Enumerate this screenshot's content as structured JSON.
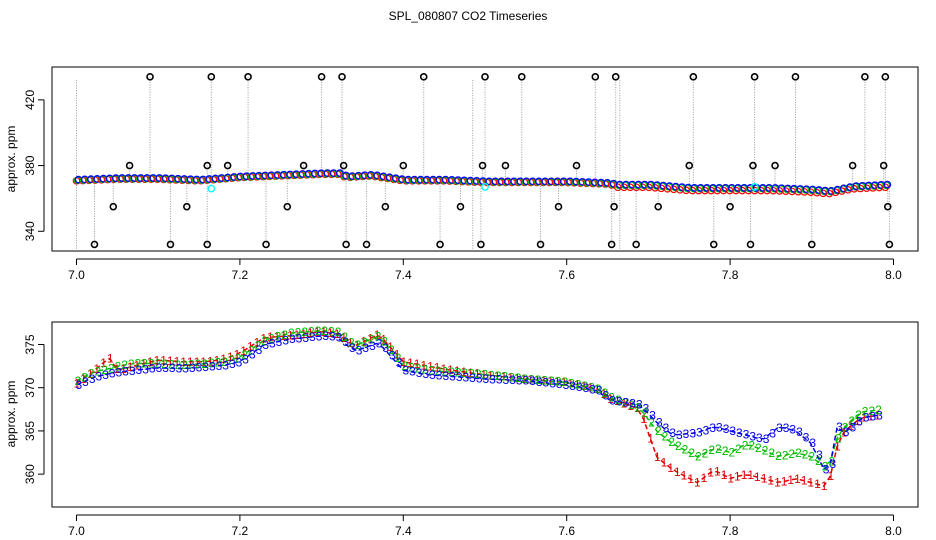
{
  "title": "SPL_080807  CO2 Timeseries",
  "chart_data": [
    {
      "type": "scatter",
      "panel": "top",
      "title": "",
      "xlabel": "",
      "ylabel": "approx. ppm",
      "xlim": [
        6.97,
        8.03
      ],
      "ylim": [
        328,
        440
      ],
      "xticks": [
        "7.0",
        "7.2",
        "7.4",
        "7.6",
        "7.8",
        "8.0"
      ],
      "xtick_values": [
        7.0,
        7.2,
        7.4,
        7.6,
        7.8,
        8.0
      ],
      "yticks": [
        "340",
        "380",
        "420"
      ],
      "ytick_values": [
        340,
        380,
        420
      ],
      "colors": {
        "red": "#ff0000",
        "green": "#00cc00",
        "blue": "#0000ff",
        "cyan": "#00ffff",
        "outlier": "#000000",
        "drop": "#9a9a9a"
      },
      "trend": {
        "x": [
          7.0,
          7.05,
          7.1,
          7.15,
          7.2,
          7.25,
          7.3,
          7.32,
          7.33,
          7.36,
          7.4,
          7.45,
          7.5,
          7.55,
          7.6,
          7.65,
          7.66,
          7.7,
          7.75,
          7.8,
          7.85,
          7.9,
          7.92,
          7.95,
          7.99
        ],
        "y": [
          371,
          372,
          372,
          371,
          373,
          374,
          375,
          375,
          373,
          374,
          371,
          371,
          370,
          370,
          370,
          369,
          368,
          368,
          366,
          366,
          366,
          365,
          364,
          367,
          368
        ]
      },
      "cyan_points": [
        [
          7.165,
          366
        ],
        [
          7.5,
          367
        ],
        [
          7.83,
          367
        ]
      ],
      "outliers_high": [
        7.09,
        7.165,
        7.21,
        7.3,
        7.325,
        7.425,
        7.5,
        7.545,
        7.635,
        7.66,
        7.755,
        7.83,
        7.88,
        7.965,
        7.99
      ],
      "outliers_low": [
        7.022,
        7.115,
        7.16,
        7.232,
        7.33,
        7.355,
        7.445,
        7.495,
        7.568,
        7.655,
        7.685,
        7.78,
        7.825,
        7.9,
        7.995
      ],
      "outliers_mid": [
        [
          7.065,
          380
        ],
        [
          7.16,
          380
        ],
        [
          7.185,
          380
        ],
        [
          7.278,
          380
        ],
        [
          7.327,
          380
        ],
        [
          7.4,
          380
        ],
        [
          7.497,
          380
        ],
        [
          7.525,
          380
        ],
        [
          7.612,
          380
        ],
        [
          7.75,
          380
        ],
        [
          7.828,
          380
        ],
        [
          7.855,
          380
        ],
        [
          7.95,
          380
        ],
        [
          7.988,
          380
        ],
        [
          7.045,
          355
        ],
        [
          7.135,
          355
        ],
        [
          7.258,
          355
        ],
        [
          7.378,
          355
        ],
        [
          7.47,
          355
        ],
        [
          7.59,
          355
        ],
        [
          7.658,
          355
        ],
        [
          7.712,
          355
        ],
        [
          7.8,
          355
        ],
        [
          7.993,
          355
        ]
      ]
    },
    {
      "type": "line",
      "panel": "bottom",
      "title": "",
      "xlabel": "",
      "ylabel": "approx. ppm",
      "xlim": [
        6.97,
        8.03
      ],
      "ylim": [
        356.2,
        377.6
      ],
      "xticks": [
        "7.0",
        "7.2",
        "7.4",
        "7.6",
        "7.8",
        "8.0"
      ],
      "xtick_values": [
        7.0,
        7.2,
        7.4,
        7.6,
        7.8,
        8.0
      ],
      "yticks": [
        "360",
        "365",
        "370",
        "375"
      ],
      "ytick_values": [
        360,
        365,
        370,
        375
      ],
      "series": [
        {
          "label": "1",
          "color": "#dd0000",
          "dash": "5,3",
          "x": [
            7.0,
            7.02,
            7.04,
            7.05,
            7.07,
            7.1,
            7.13,
            7.16,
            7.18,
            7.2,
            7.23,
            7.26,
            7.3,
            7.32,
            7.34,
            7.37,
            7.4,
            7.43,
            7.46,
            7.5,
            7.55,
            7.6,
            7.64,
            7.65,
            7.66,
            7.69,
            7.71,
            7.73,
            7.76,
            7.78,
            7.8,
            7.82,
            7.84,
            7.86,
            7.88,
            7.9,
            7.92,
            7.93,
            7.94,
            7.96,
            7.98
          ],
          "y": [
            370.5,
            371.8,
            373.5,
            372.0,
            372.5,
            373.2,
            373.0,
            373.0,
            373.3,
            374.0,
            375.8,
            376.0,
            376.5,
            376.2,
            374.8,
            376.2,
            373.0,
            372.5,
            372.0,
            371.5,
            371.0,
            370.6,
            369.8,
            368.8,
            368.5,
            367.5,
            362.0,
            360.5,
            359.0,
            360.5,
            359.5,
            360.0,
            359.5,
            359.0,
            359.5,
            359.0,
            358.5,
            363.0,
            365.0,
            366.5,
            366.8
          ]
        },
        {
          "label": "2",
          "color": "#00bb00",
          "dash": "5,3",
          "x": [
            7.0,
            7.02,
            7.04,
            7.05,
            7.07,
            7.1,
            7.13,
            7.16,
            7.18,
            7.2,
            7.23,
            7.26,
            7.3,
            7.32,
            7.34,
            7.37,
            7.4,
            7.43,
            7.46,
            7.5,
            7.55,
            7.6,
            7.64,
            7.65,
            7.66,
            7.69,
            7.71,
            7.73,
            7.76,
            7.78,
            7.8,
            7.82,
            7.84,
            7.86,
            7.88,
            7.9,
            7.92,
            7.93,
            7.94,
            7.96,
            7.98
          ],
          "y": [
            370.8,
            371.8,
            372.2,
            372.5,
            372.8,
            372.8,
            372.6,
            372.8,
            373.0,
            373.5,
            375.5,
            376.3,
            376.6,
            376.4,
            374.8,
            376.0,
            372.5,
            372.0,
            371.8,
            371.5,
            371.0,
            370.6,
            369.8,
            369.0,
            368.6,
            367.6,
            365.0,
            363.5,
            362.0,
            363.0,
            362.5,
            363.5,
            362.8,
            362.0,
            362.5,
            362.0,
            360.5,
            364.0,
            365.5,
            367.2,
            367.4
          ]
        },
        {
          "label": "3",
          "color": "#0000ee",
          "dash": "5,3",
          "x": [
            7.0,
            7.02,
            7.04,
            7.05,
            7.07,
            7.1,
            7.13,
            7.16,
            7.18,
            7.2,
            7.23,
            7.26,
            7.3,
            7.32,
            7.34,
            7.37,
            7.4,
            7.43,
            7.46,
            7.5,
            7.55,
            7.6,
            7.64,
            7.65,
            7.66,
            7.69,
            7.71,
            7.73,
            7.76,
            7.78,
            7.8,
            7.82,
            7.84,
            7.86,
            7.88,
            7.9,
            7.92,
            7.93,
            7.94,
            7.96,
            7.98
          ],
          "y": [
            370.3,
            371.2,
            371.6,
            371.8,
            372.0,
            372.3,
            372.2,
            372.4,
            372.6,
            373.0,
            375.0,
            375.6,
            376.0,
            375.8,
            374.2,
            375.2,
            372.0,
            371.5,
            371.3,
            371.0,
            370.8,
            370.3,
            369.6,
            368.6,
            368.4,
            368.0,
            366.0,
            364.5,
            364.8,
            365.5,
            365.0,
            364.5,
            364.0,
            365.5,
            365.0,
            363.5,
            359.5,
            365.5,
            364.8,
            366.5,
            366.8
          ]
        }
      ]
    }
  ]
}
